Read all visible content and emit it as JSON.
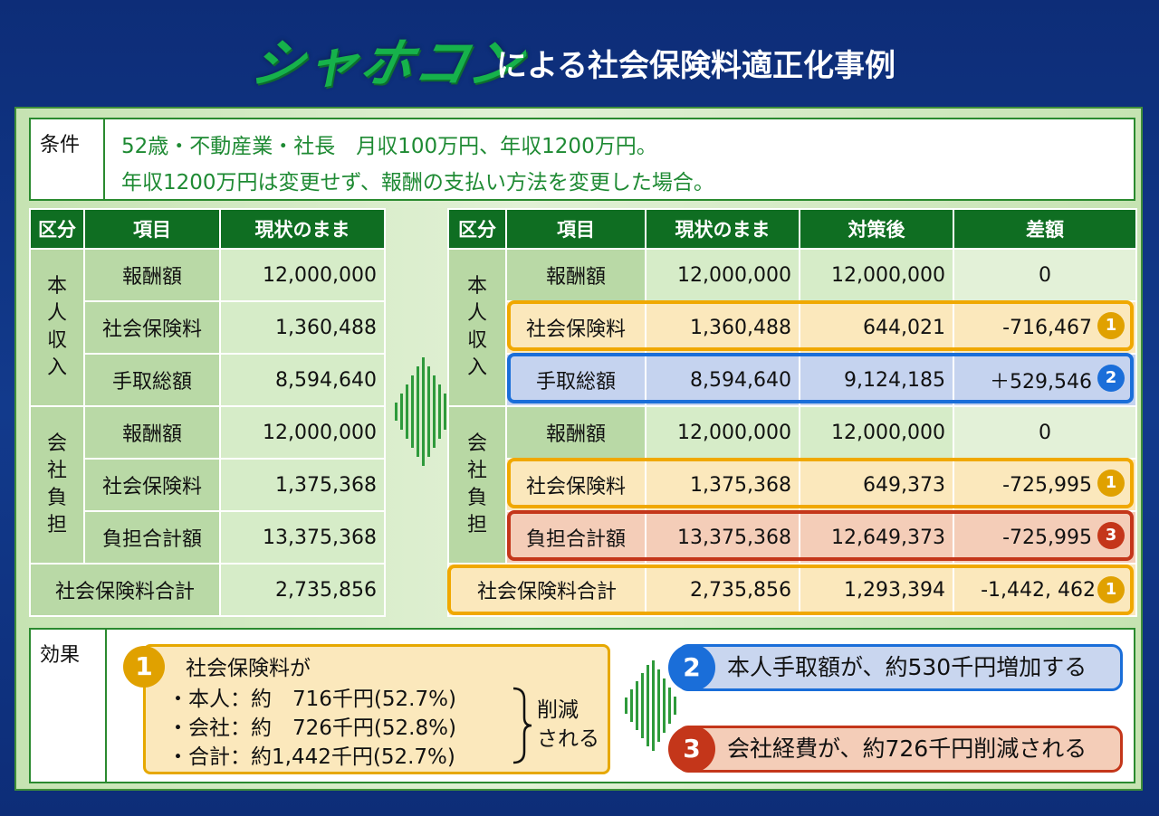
{
  "header": {
    "logo": "シャホコン",
    "title": "による社会保険料適正化事例"
  },
  "condition": {
    "label": "条件",
    "line1": "52歳・不動産業・社長　月収100万円、年収1200万円。",
    "line2": "年収1200万円は変更せず、報酬の支払い方法を変更した場合。"
  },
  "left_table": {
    "headers": [
      "区分",
      "項目",
      "現状のまま"
    ],
    "cat_person": "本人収入",
    "cat_company": "会社負担",
    "rows": [
      {
        "item": "報酬額",
        "current": "12,000,000"
      },
      {
        "item": "社会保険料",
        "current": "1,360,488"
      },
      {
        "item": "手取総額",
        "current": "8,594,640"
      },
      {
        "item": "報酬額",
        "current": "12,000,000"
      },
      {
        "item": "社会保険料",
        "current": "1,375,368"
      },
      {
        "item": "負担合計額",
        "current": "13,375,368"
      }
    ],
    "total": {
      "item": "社会保険料合計",
      "current": "2,735,856"
    }
  },
  "right_table": {
    "headers": [
      "区分",
      "項目",
      "現状のまま",
      "対策後",
      "差額"
    ],
    "cat_person": "本人収入",
    "cat_company": "会社負担",
    "rows": [
      {
        "item": "報酬額",
        "current": "12,000,000",
        "after": "12,000,000",
        "diff": "0",
        "badge": ""
      },
      {
        "item": "社会保険料",
        "current": "1,360,488",
        "after": "644,021",
        "diff": "-716,467",
        "badge": "1"
      },
      {
        "item": "手取総額",
        "current": "8,594,640",
        "after": "9,124,185",
        "diff": "＋529,546",
        "badge": "2"
      },
      {
        "item": "報酬額",
        "current": "12,000,000",
        "after": "12,000,000",
        "diff": "0",
        "badge": ""
      },
      {
        "item": "社会保険料",
        "current": "1,375,368",
        "after": "649,373",
        "diff": "-725,995",
        "badge": "1"
      },
      {
        "item": "負担合計額",
        "current": "13,375,368",
        "after": "12,649,373",
        "diff": "-725,995",
        "badge": "3"
      }
    ],
    "total": {
      "item": "社会保険料合計",
      "current": "2,735,856",
      "after": "1,293,394",
      "diff": "-1,442, 462",
      "badge": "1"
    }
  },
  "effect": {
    "label": "効果",
    "box1": {
      "badge": "1",
      "title": "社会保険料が",
      "line1": "・本人：約　716千円(52.7%)",
      "line2": "・会社：約　726千円(52.8%)",
      "line3": "・合計：約1,442千円(52.7%)",
      "reduced_1": "削減",
      "reduced_2": "される"
    },
    "box2": {
      "badge": "2",
      "text": "本人手取額が、約530千円増加する"
    },
    "box3": {
      "badge": "3",
      "text": "会社経費が、約726千円削減される"
    }
  },
  "colors": {
    "header_green": "#0f6e22",
    "orange": "#f0a800",
    "blue": "#1a6ed9",
    "red": "#c4361a",
    "negative_text": "#cc1515",
    "positive_text": "#1a55c8"
  }
}
